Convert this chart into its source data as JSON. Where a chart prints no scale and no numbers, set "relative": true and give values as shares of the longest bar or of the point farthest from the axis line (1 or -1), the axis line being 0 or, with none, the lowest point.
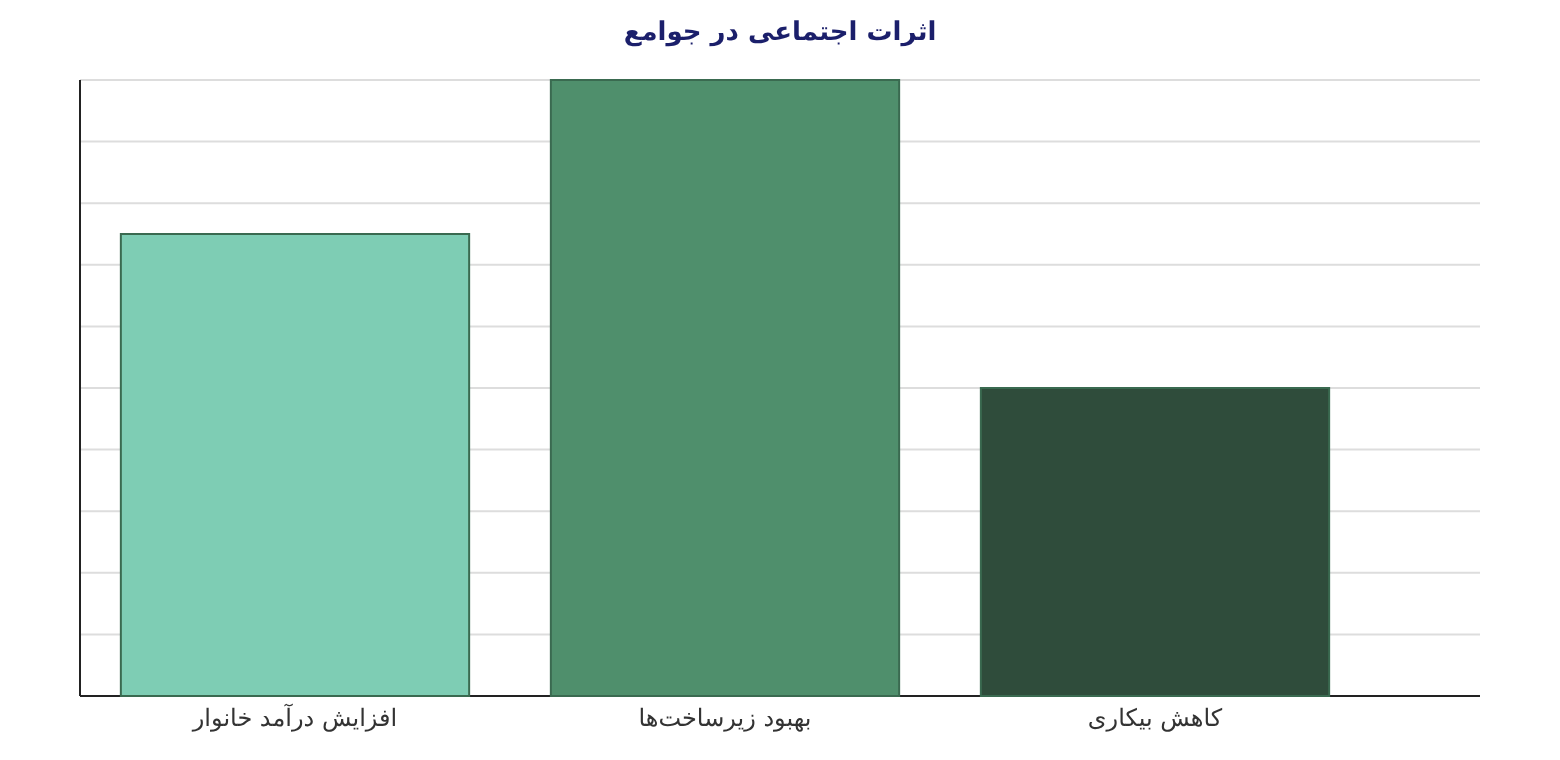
{
  "chart_data": {
    "type": "bar",
    "title": "اثرات اجتماعی در جوامع",
    "categories": [
      "افزایش درآمد خانوار",
      "بهبود زیرساخت‌ها",
      "کاهش بیکاری"
    ],
    "values": [
      0.75,
      1,
      0.5
    ],
    "colors": [
      "#7ecdb4",
      "#4f8f6c",
      "#2f4c3b"
    ],
    "relative": true,
    "grid": "y"
  }
}
